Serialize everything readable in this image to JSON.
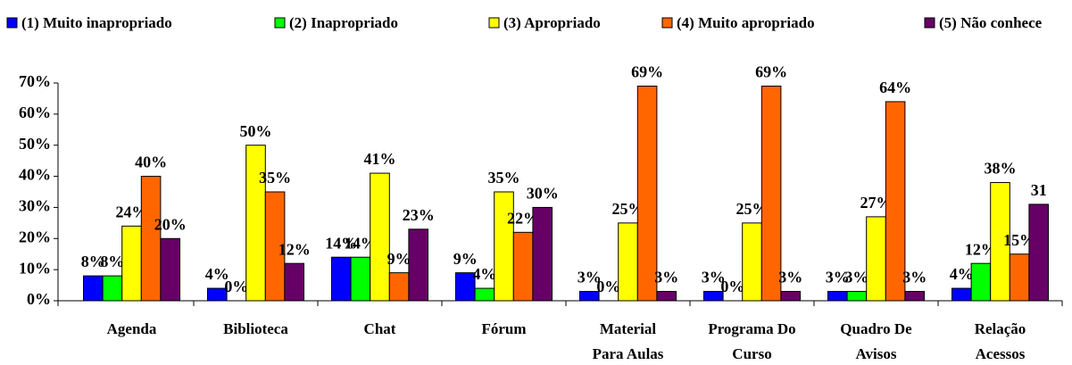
{
  "chart_data": {
    "type": "bar",
    "categories": [
      [
        "Agenda"
      ],
      [
        "Biblioteca"
      ],
      [
        "Chat"
      ],
      [
        "Fórum"
      ],
      [
        "Material",
        "Para Aulas"
      ],
      [
        "Programa Do",
        "Curso"
      ],
      [
        "Quadro De",
        "Avisos"
      ],
      [
        "Relação",
        "Acessos"
      ]
    ],
    "series": [
      {
        "name": "(1) Muito inapropriado",
        "color": "#0000ff",
        "values": [
          8,
          4,
          14,
          9,
          3,
          3,
          3,
          4
        ],
        "value_labels": [
          "8%",
          "4%",
          "14%",
          "9%",
          "3%",
          "3%",
          "3%",
          "4%"
        ]
      },
      {
        "name": "(2) Inapropriado",
        "color": "#00ff00",
        "values": [
          8,
          0,
          14,
          4,
          0,
          0,
          3,
          12
        ],
        "value_labels": [
          "8%",
          "0%",
          "14%",
          "4%",
          "0%",
          "0%",
          "3%",
          "12%"
        ]
      },
      {
        "name": "(3) Apropriado",
        "color": "#ffff00",
        "values": [
          24,
          50,
          41,
          35,
          25,
          25,
          27,
          38
        ],
        "value_labels": [
          "24%",
          "50%",
          "41%",
          "35%",
          "25%",
          "25%",
          "27%",
          "38%"
        ]
      },
      {
        "name": "(4) Muito apropriado",
        "color": "#ff6600",
        "values": [
          40,
          35,
          9,
          22,
          69,
          69,
          64,
          15
        ],
        "value_labels": [
          "40%",
          "35%",
          "9%",
          "22%",
          "69%",
          "69%",
          "64%",
          "15%"
        ]
      },
      {
        "name": "(5) Não conhece",
        "color": "#660066",
        "values": [
          20,
          12,
          23,
          30,
          3,
          3,
          3,
          31
        ],
        "value_labels": [
          "20%",
          "12%",
          "23%",
          "30%",
          "3%",
          "3%",
          "3%",
          "31"
        ]
      }
    ],
    "ylim": [
      0,
      70
    ],
    "yticks": [
      {
        "value": 0,
        "label": "0%"
      },
      {
        "value": 10,
        "label": "10%"
      },
      {
        "value": 20,
        "label": "20%"
      },
      {
        "value": 30,
        "label": "30%"
      },
      {
        "value": 40,
        "label": "40%"
      },
      {
        "value": 50,
        "label": "50%"
      },
      {
        "value": 60,
        "label": "60%"
      },
      {
        "value": 70,
        "label": "70%"
      }
    ],
    "legend": "top",
    "grid": false
  }
}
